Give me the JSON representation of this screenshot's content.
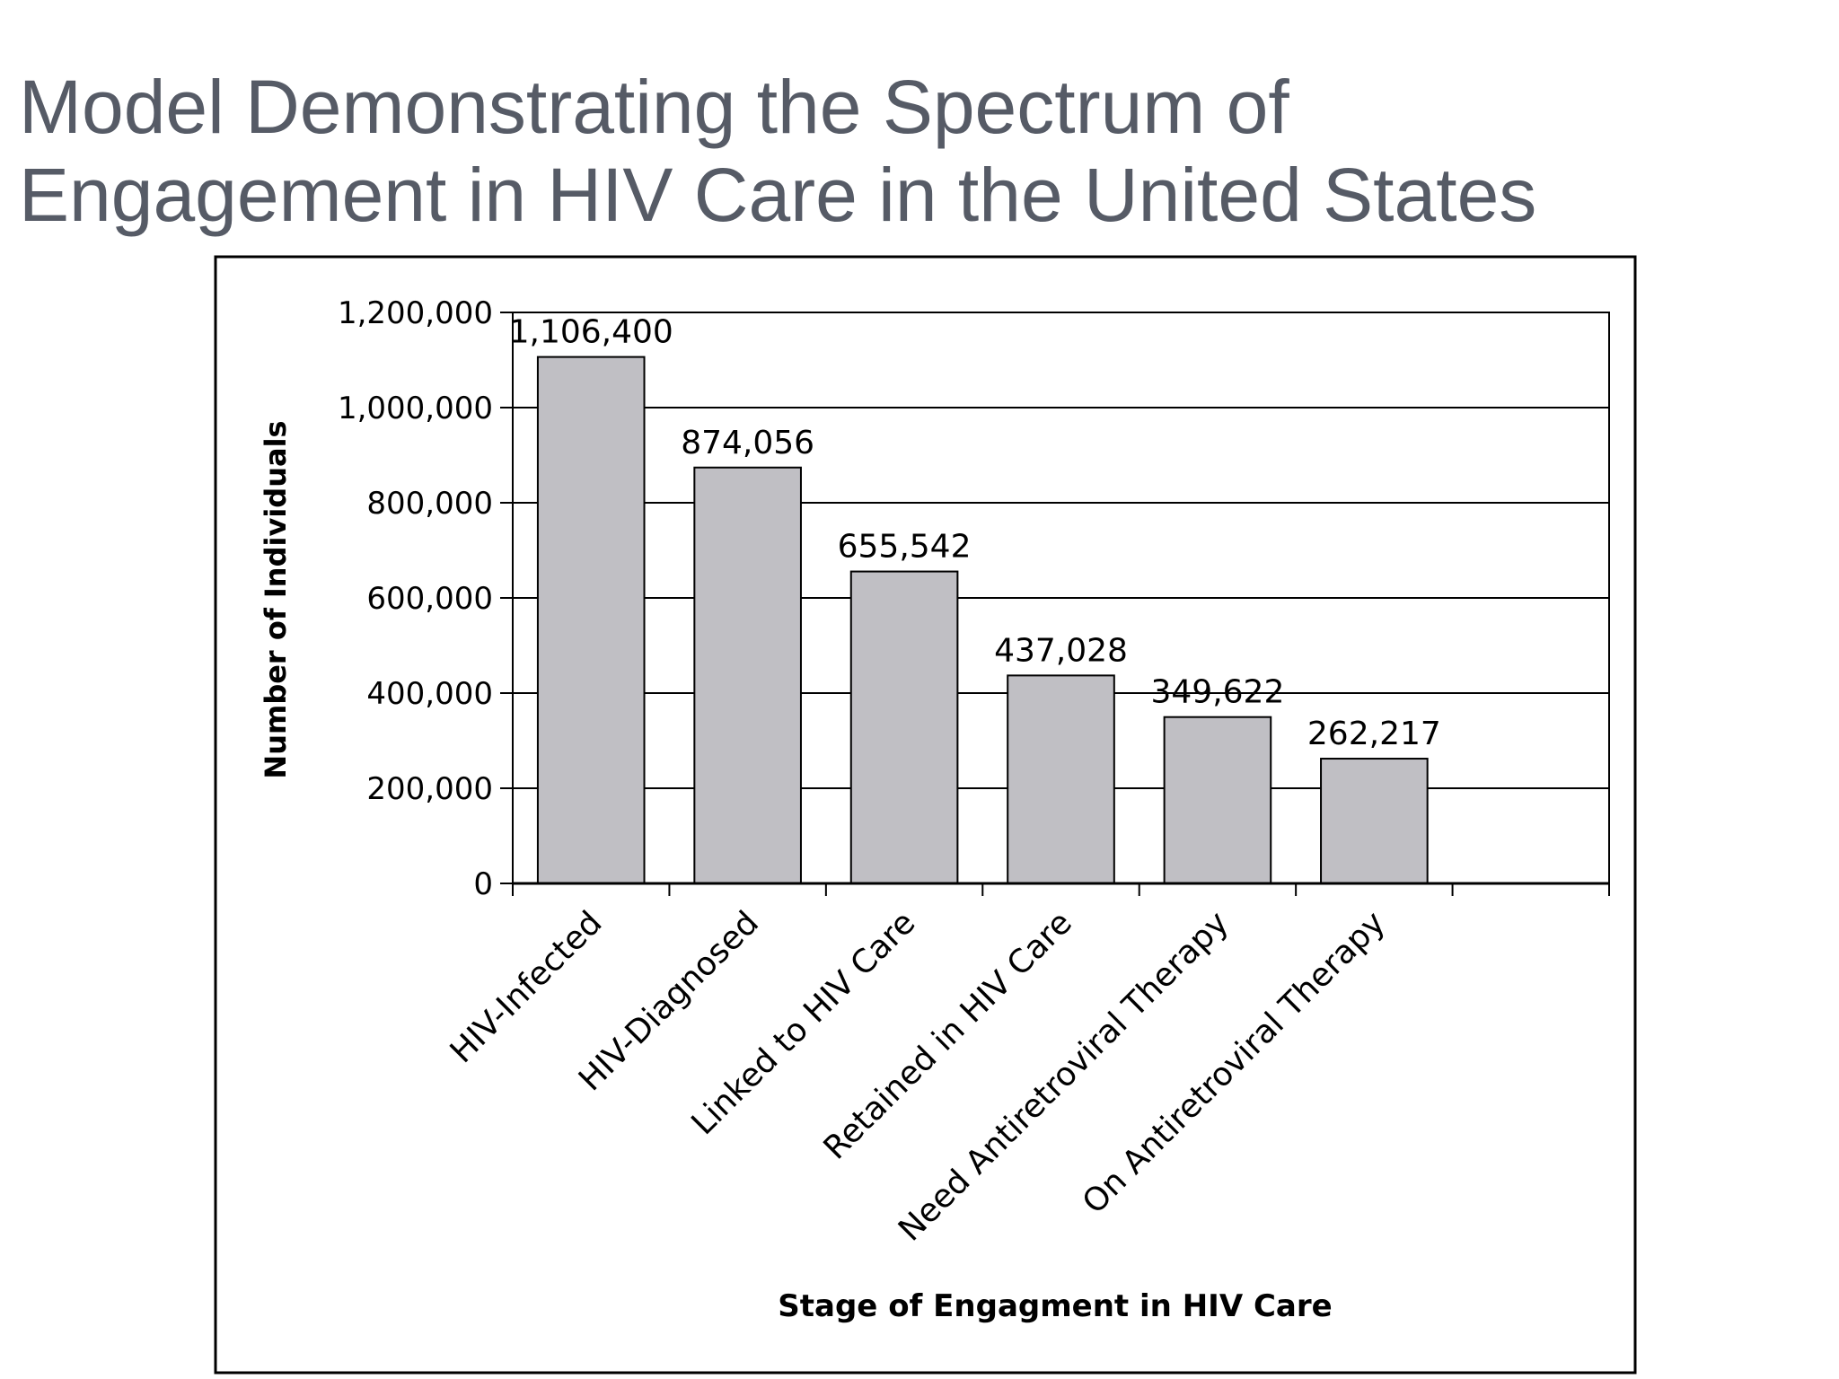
{
  "slide": {
    "title_line1": "Model Demonstrating the Spectrum of",
    "title_line2": "Engagement in HIV Care in the United States"
  },
  "chart_data": {
    "type": "bar",
    "categories": [
      "HIV-Infected",
      "HIV-Diagnosed",
      "Linked to HIV Care",
      "Retained in HIV Care",
      "Need Antiretroviral Therapy",
      "On Antiretroviral Therapy"
    ],
    "values": [
      1106400,
      874056,
      655542,
      437028,
      349622,
      262217
    ],
    "data_labels": [
      "1,106,400",
      "874,056",
      "655,542",
      "437,028",
      "349,622",
      "262,217"
    ],
    "xlabel": "Stage of Engagment in HIV Care",
    "ylabel": "Number of Individuals",
    "ylim": [
      0,
      1200000
    ],
    "yticks": [
      0,
      200000,
      400000,
      600000,
      800000,
      1000000,
      1200000
    ],
    "ytick_labels": [
      "0",
      "200,000",
      "400,000",
      "600,000",
      "800,000",
      "1,000,000",
      "1,200,000"
    ],
    "grid": true,
    "legend": "none",
    "colors": {
      "bar_fill": "#c0bfc4",
      "bar_stroke": "#000000",
      "frame": "#000000",
      "title_text": "#565b66"
    }
  }
}
